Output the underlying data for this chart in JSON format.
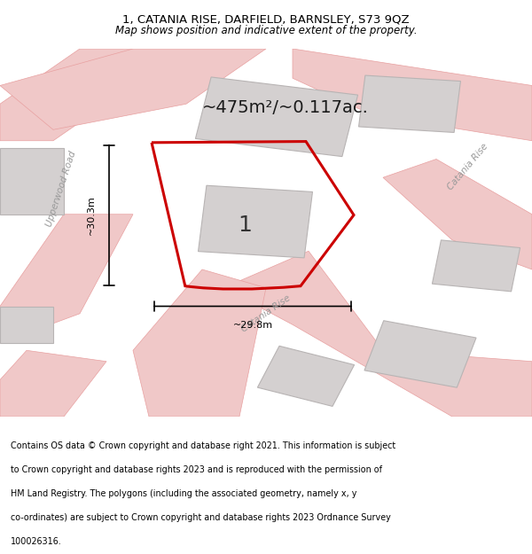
{
  "title_line1": "1, CATANIA RISE, DARFIELD, BARNSLEY, S73 9QZ",
  "title_line2": "Map shows position and indicative extent of the property.",
  "area_label": "~475m²/~0.117ac.",
  "dim_vertical": "~30.3m",
  "dim_horizontal": "~29.8m",
  "plot_number": "1",
  "footer_text": "Contains OS data © Crown copyright and database right 2021. This information is subject to Crown copyright and database rights 2023 and is reproduced with the permission of HM Land Registry. The polygons (including the associated geometry, namely x, y co-ordinates) are subject to Crown copyright and database rights 2023 Ordnance Survey 100026316.",
  "bg_color": "#f5f5f5",
  "map_bg": "#f0eeee",
  "road_color": "#e8c8c8",
  "building_color": "#d8d5d5",
  "building_edge": "#c0bbbb",
  "red_plot_color": "#cc0000",
  "black_color": "#000000",
  "gray_text": "#888888",
  "title_fontsize": 10,
  "footer_fontsize": 7.5
}
